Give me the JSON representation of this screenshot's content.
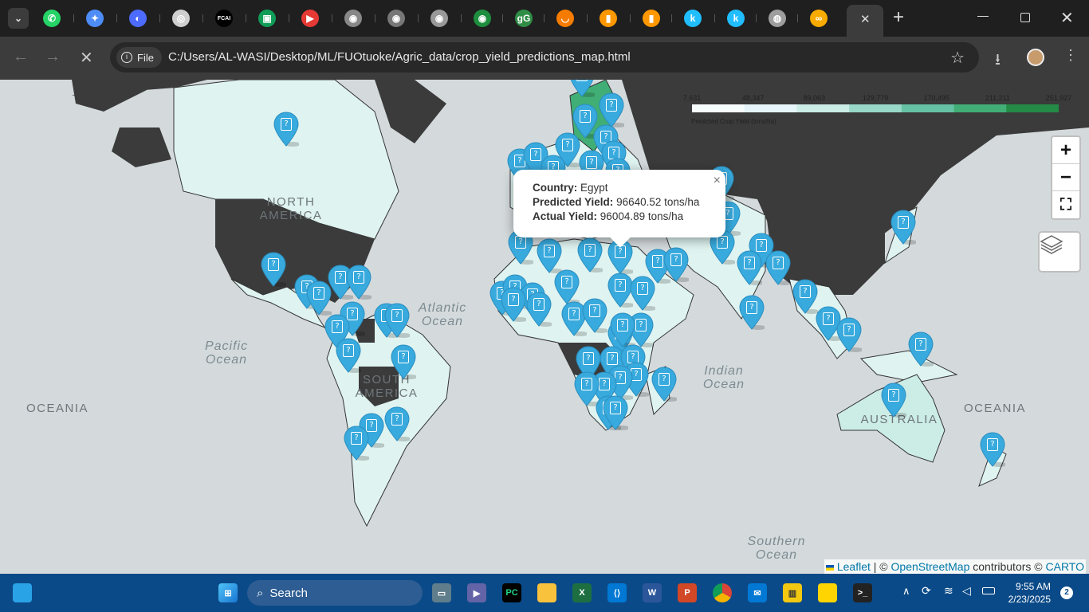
{
  "browser": {
    "url": "C:/Users/AL-WASI/Desktop/ML/FUOtuoke/Agric_data/crop_yield_predictions_map.html",
    "file_label": "File",
    "tab_close": "✕",
    "new_tab": "+",
    "tab_icons": [
      {
        "name": "whatsapp-tab-icon",
        "glyph": "✆",
        "color": "#25d366"
      },
      {
        "name": "gemini-tab-icon",
        "glyph": "✦",
        "color": "#4e8cf7"
      },
      {
        "name": "deepseek-tab-icon",
        "glyph": "◐",
        "color": "#4d6bfe"
      },
      {
        "name": "chatgpt-tab-icon",
        "glyph": "◎",
        "color": "#cfcfcf"
      },
      {
        "name": "fcai-tab-icon",
        "glyph": "FCAI",
        "color": "#000000"
      },
      {
        "name": "android-tab-icon",
        "glyph": "▣",
        "color": "#0f9d58"
      },
      {
        "name": "youtube-tab-icon",
        "glyph": "▶",
        "color": "#e53935"
      },
      {
        "name": "site-tab-icon-1",
        "glyph": "◉",
        "color": "#888888"
      },
      {
        "name": "site-tab-icon-2",
        "glyph": "◉",
        "color": "#777777"
      },
      {
        "name": "site-tab-icon-3",
        "glyph": "◉",
        "color": "#999999"
      },
      {
        "name": "site-tab-icon-4",
        "glyph": "◉",
        "color": "#1e8e3e"
      },
      {
        "name": "geeksforgeeks-tab-icon",
        "glyph": "gG",
        "color": "#2f8d46"
      },
      {
        "name": "loading-tab-icon",
        "glyph": "◡",
        "color": "#f57c00"
      },
      {
        "name": "book-tab-icon-1",
        "glyph": "▮",
        "color": "#ff9800"
      },
      {
        "name": "book-tab-icon-2",
        "glyph": "▮",
        "color": "#ff9800"
      },
      {
        "name": "kaggle-tab-icon-1",
        "glyph": "k",
        "color": "#20beff"
      },
      {
        "name": "kaggle-tab-icon-2",
        "glyph": "k",
        "color": "#20beff"
      },
      {
        "name": "globe-tab-icon",
        "glyph": "◍",
        "color": "#9e9e9e"
      },
      {
        "name": "colab-tab-icon",
        "glyph": "∞",
        "color": "#f9ab00"
      }
    ]
  },
  "map": {
    "labels": {
      "north_america": "NORTH\nAMERICA",
      "south_america": "SOUTH\nAMERICA",
      "australia": "AUSTRALIA",
      "oceania_left": "OCEANIA",
      "oceania_right": "OCEANIA"
    },
    "oceans": {
      "atlantic": "Atlantic\nOcean",
      "pacific": "Pacific\nOcean",
      "indian": "Indian\nOcean",
      "southern": "Southern\nOcean"
    },
    "legend": {
      "ticks": [
        "7,631",
        "48,347",
        "89,063",
        "129,779",
        "170,495",
        "211,211",
        "251,927"
      ],
      "caption": "Predicted Crop Yield (tons/ha)",
      "colors": [
        "#f7fcfd",
        "#e5f5f9",
        "#ccece6",
        "#99d8c9",
        "#66c2a4",
        "#41ae76",
        "#238b45"
      ]
    },
    "popup": {
      "country_label": "Country:",
      "country_value": "Egypt",
      "predicted_label": "Predicted Yield:",
      "predicted_value": "96640.52 tons/ha",
      "actual_label": "Actual Yield:",
      "actual_value": "96004.89 tons/ha",
      "close": "×"
    },
    "zoom_in": "+",
    "zoom_out": "−",
    "fullscreen": "⛶",
    "marker_color": "#38aadd",
    "marker_glyph": "?",
    "attribution": {
      "leaflet": "Leaflet",
      "sep": " | © ",
      "osm": "OpenStreetMap",
      "contrib": " contributors © ",
      "carto": "CARTO"
    }
  },
  "taskbar": {
    "search_label": "Search",
    "time": "9:55 AM",
    "date": "2/23/2025",
    "notification_count": "2"
  }
}
